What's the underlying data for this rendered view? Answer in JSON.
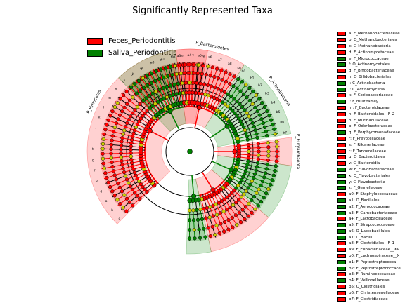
{
  "chart_data": {
    "type": "cladogram",
    "title": "Significantly Represented Taxa",
    "groups": [
      {
        "name": "Feces_Periodontitis",
        "color": "#ff0000"
      },
      {
        "name": "Saliva_Periodontitis",
        "color": "#008000"
      }
    ],
    "taxa": [
      {
        "code": "a",
        "name": "F_Methanobacteriaceae",
        "group": 0
      },
      {
        "code": "b",
        "name": "O_Methanobacteriales",
        "group": 0
      },
      {
        "code": "c",
        "name": "C_Methanobacteria",
        "group": 0
      },
      {
        "code": "d",
        "name": "F_Actinomycetaceae",
        "group": 0
      },
      {
        "code": "e",
        "name": "F_Micrococcaceae",
        "group": 1
      },
      {
        "code": "f",
        "name": "O_Actinomycetales",
        "group": 1
      },
      {
        "code": "g",
        "name": "F_Bifidobacteriaceae",
        "group": 0
      },
      {
        "code": "h",
        "name": "O_Bifidobacteriales",
        "group": 0
      },
      {
        "code": "i",
        "name": "C_Actinobacteria",
        "group": 1
      },
      {
        "code": "j",
        "name": "C_Actinomycetia",
        "group": 1
      },
      {
        "code": "k",
        "name": "F_Coriobacteriaceae",
        "group": 0
      },
      {
        "code": "l",
        "name": "F_multifamily",
        "group": 1
      },
      {
        "code": "m",
        "name": "F_Bacteroidaceae",
        "group": 0
      },
      {
        "code": "n",
        "name": "F_Bacteroidales__F_2_",
        "group": 0
      },
      {
        "code": "o",
        "name": "F_Muribaculaceae",
        "group": 0
      },
      {
        "code": "p",
        "name": "F_Odoribacteraceae",
        "group": 0
      },
      {
        "code": "q",
        "name": "F_Porphyromonadaceae",
        "group": 1
      },
      {
        "code": "r",
        "name": "F_Prevotellaceae",
        "group": 0
      },
      {
        "code": "s",
        "name": "F_Rikenellaceae",
        "group": 0
      },
      {
        "code": "t",
        "name": "F_Tannerellaceae",
        "group": 0
      },
      {
        "code": "u",
        "name": "O_Bacteroidales",
        "group": 0
      },
      {
        "code": "v",
        "name": "C_Bacteroidia",
        "group": 0
      },
      {
        "code": "w",
        "name": "F_Flavobacteriaceae",
        "group": 1
      },
      {
        "code": "x",
        "name": "O_Flavobacteriales",
        "group": 1
      },
      {
        "code": "y",
        "name": "C_Flavobacteriia",
        "group": 1
      },
      {
        "code": "z",
        "name": "F_Gemellaceae",
        "group": 1
      },
      {
        "code": "a0",
        "name": "F_Staphylococcaceae",
        "group": 0
      },
      {
        "code": "a1",
        "name": "O_Bacillales",
        "group": 1
      },
      {
        "code": "a2",
        "name": "F_Aerococcaceae",
        "group": 1
      },
      {
        "code": "a3",
        "name": "F_Carnobacteriaceae",
        "group": 1
      },
      {
        "code": "a4",
        "name": "F_Lactobacillaceae",
        "group": 0
      },
      {
        "code": "a5",
        "name": "F_Streptococcaceae",
        "group": 1
      },
      {
        "code": "a6",
        "name": "O_Lactobacillales",
        "group": 1
      },
      {
        "code": "a7",
        "name": "C_Bacilli",
        "group": 1
      },
      {
        "code": "a8",
        "name": "F_Clostridiales__F_1_",
        "group": 0
      },
      {
        "code": "a9",
        "name": "F_Eubacteriaceae__XV",
        "group": 0
      },
      {
        "code": "b0",
        "name": "F_Lachnospiraceae__X",
        "group": 0
      },
      {
        "code": "b1",
        "name": "F_Peptostreptococca",
        "group": 1
      },
      {
        "code": "b2",
        "name": "F_Peptostreptococcace",
        "group": 1
      },
      {
        "code": "b3",
        "name": "F_Ruminococcaceae",
        "group": 0
      },
      {
        "code": "b4",
        "name": "F_Veillonellaceae",
        "group": 1
      },
      {
        "code": "b5",
        "name": "O_Clostridiales",
        "group": 0
      },
      {
        "code": "b6",
        "name": "F_Christensenellaceae",
        "group": 0
      },
      {
        "code": "b7",
        "name": "F_Clostridiaceae",
        "group": 0
      }
    ],
    "clade_labels": [
      "P_Bacteroidetes",
      "P_Actinobacteria",
      "P_Euryarchaeota",
      "P_Firmicutes"
    ],
    "sector_letters": [
      "c",
      "b",
      "a",
      "d",
      "e",
      "f",
      "g",
      "h",
      "i",
      "j",
      "k",
      "l",
      "m",
      "n",
      "o",
      "p",
      "q",
      "r",
      "s",
      "t",
      "u",
      "v",
      "w",
      "x",
      "y",
      "z",
      "a0",
      "a1",
      "a2",
      "a3",
      "a4",
      "a5",
      "a6",
      "a7",
      "a8",
      "a9",
      "b0",
      "b1",
      "b2",
      "b3",
      "b4",
      "b5",
      "b6",
      "b7"
    ]
  }
}
